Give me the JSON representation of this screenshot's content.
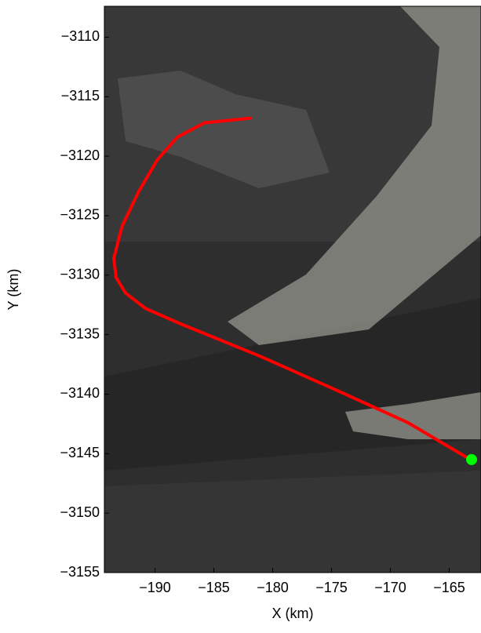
{
  "chart_data": {
    "type": "line",
    "xlabel": "X (km)",
    "ylabel": "Y (km)",
    "xlim": [
      -194.3,
      -162.3
    ],
    "ylim": [
      -3155,
      -3107.4
    ],
    "xticks": [
      {
        "value": -190,
        "label": "−190"
      },
      {
        "value": -185,
        "label": "−185"
      },
      {
        "value": -180,
        "label": "−180"
      },
      {
        "value": -175,
        "label": "−175"
      },
      {
        "value": -170,
        "label": "−170"
      },
      {
        "value": -165,
        "label": "−165"
      }
    ],
    "yticks": [
      {
        "value": -3110,
        "label": "−3110"
      },
      {
        "value": -3115,
        "label": "−3115"
      },
      {
        "value": -3120,
        "label": "−3120"
      },
      {
        "value": -3125,
        "label": "−3125"
      },
      {
        "value": -3130,
        "label": "−3130"
      },
      {
        "value": -3135,
        "label": "−3135"
      },
      {
        "value": -3140,
        "label": "−3140"
      },
      {
        "value": -3145,
        "label": "−3145"
      },
      {
        "value": -3150,
        "label": "−3150"
      },
      {
        "value": -3155,
        "label": "−3155"
      }
    ],
    "series": [
      {
        "color": "#ff0000",
        "style": "line",
        "x": [
          -181.9,
          -185.8,
          -188.1,
          -189.8,
          -191.4,
          -192.8,
          -193.5,
          -193.3,
          -192.5,
          -190.8,
          -187.8,
          -181.1,
          -174.5,
          -168.5,
          -163.2
        ],
        "values": [
          -3116.8,
          -3117.2,
          -3118.4,
          -3120.3,
          -3123.0,
          -3125.9,
          -3128.6,
          -3130.2,
          -3131.5,
          -3132.8,
          -3134.1,
          -3136.8,
          -3139.7,
          -3142.4,
          -3145.5
        ]
      },
      {
        "color": "#00ff00",
        "style": "marker",
        "x": [
          -163.1
        ],
        "values": [
          -3145.5
        ]
      }
    ]
  }
}
